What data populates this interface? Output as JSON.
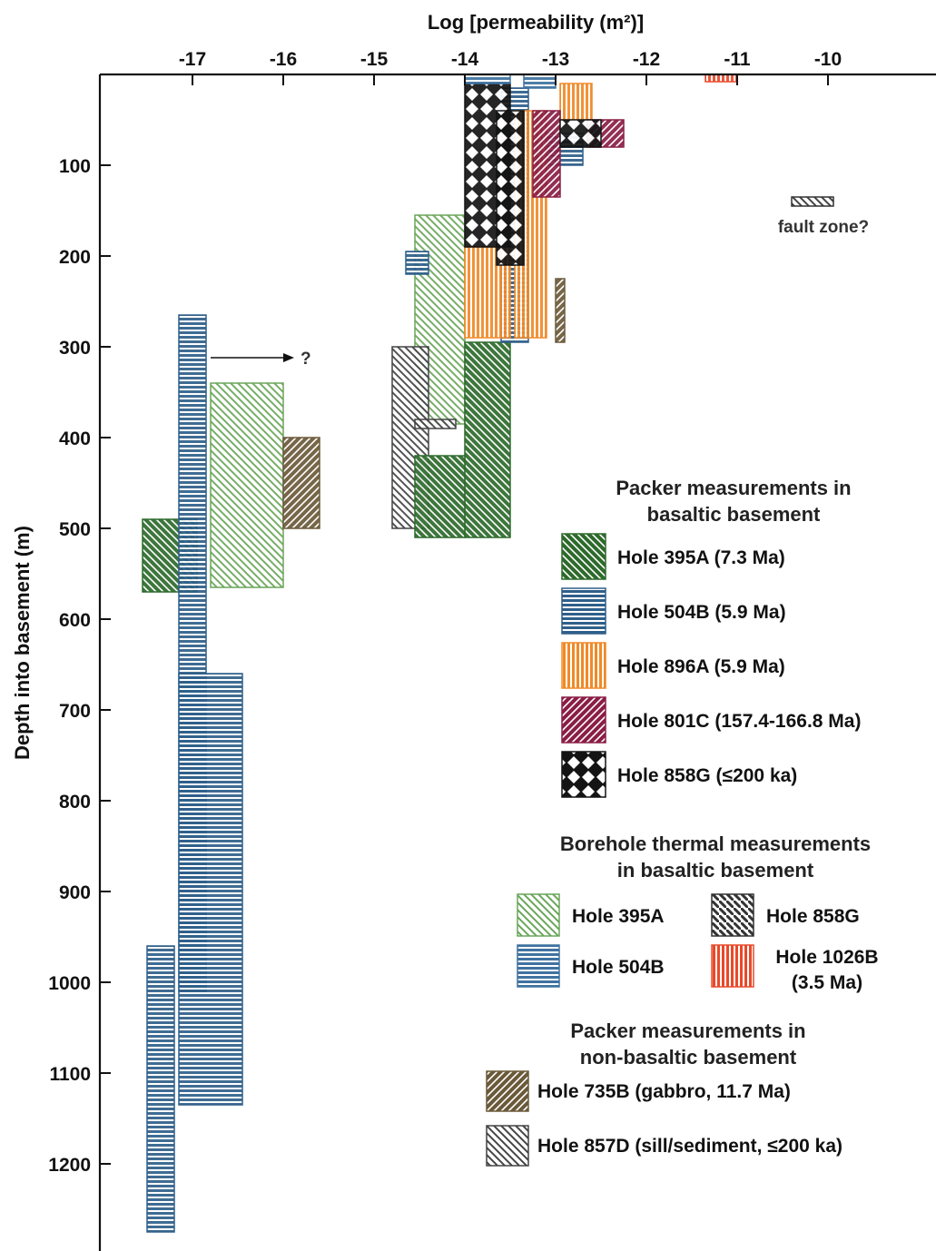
{
  "chart_data": {
    "type": "range-bar",
    "xlabel": "Log [permeability (m²)]",
    "ylabel": "Depth into basement (m)",
    "xlim": [
      -18,
      -9
    ],
    "ylim": [
      0,
      1280
    ],
    "y_inverted": true,
    "x_ticks": [
      "-17",
      "-16",
      "-15",
      "-14",
      "-13",
      "-12",
      "-11",
      "-10"
    ],
    "y_ticks": [
      "100",
      "200",
      "300",
      "400",
      "500",
      "600",
      "700",
      "800",
      "900",
      "1000",
      "1100",
      "1200"
    ],
    "legend_groups": [
      {
        "title_lines": [
          "Packer measurements in",
          "basaltic basement"
        ],
        "items": [
          {
            "key": "p395A",
            "label": "Hole 395A (7.3 Ma)"
          },
          {
            "key": "p504B",
            "label": "Hole 504B (5.9 Ma)"
          },
          {
            "key": "p896A",
            "label": "Hole 896A (5.9 Ma)"
          },
          {
            "key": "p801C",
            "label": "Hole 801C (157.4-166.8 Ma)"
          },
          {
            "key": "p858G",
            "label": "Hole 858G (≤200 ka)"
          }
        ]
      },
      {
        "title_lines": [
          "Borehole thermal measurements",
          "in basaltic basement"
        ],
        "items": [
          {
            "key": "t395A",
            "label": "Hole 395A"
          },
          {
            "key": "t858G",
            "label": "Hole 858G"
          },
          {
            "key": "t504B",
            "label": "Hole 504B"
          },
          {
            "key": "t1026B",
            "label": "Hole 1026B",
            "label2": "(3.5 Ma)"
          }
        ]
      },
      {
        "title_lines": [
          "Packer measurements in",
          "non-basaltic basement"
        ],
        "items": [
          {
            "key": "n735B",
            "label": "Hole 735B (gabbro, 11.7 Ma)"
          },
          {
            "key": "n857D",
            "label": "Hole 857D (sill/sediment, ≤200 ka)"
          }
        ]
      }
    ],
    "series": [
      {
        "key": "t395A",
        "ranges": [
          {
            "x": [
              -16.8,
              -16.0
            ],
            "y": [
              340,
              565
            ]
          },
          {
            "x": [
              -14.55,
              -14.0
            ],
            "y": [
              155,
              385
            ]
          }
        ]
      },
      {
        "key": "n735B",
        "ranges": [
          {
            "x": [
              -16.0,
              -15.6
            ],
            "y": [
              400,
              500
            ]
          },
          {
            "x": [
              -13.0,
              -12.9
            ],
            "y": [
              225,
              295
            ]
          }
        ]
      },
      {
        "key": "n857D",
        "ranges": [
          {
            "x": [
              -14.8,
              -14.4
            ],
            "y": [
              300,
              500
            ]
          },
          {
            "x": [
              -14.55,
              -14.1
            ],
            "y": [
              380,
              390
            ]
          }
        ]
      },
      {
        "key": "p395A",
        "ranges": [
          {
            "x": [
              -17.55,
              -16.95
            ],
            "y": [
              490,
              570
            ]
          },
          {
            "x": [
              -14.0,
              -13.5
            ],
            "y": [
              295,
              510
            ]
          },
          {
            "x": [
              -14.55,
              -14.0
            ],
            "y": [
              420,
              510
            ]
          }
        ]
      },
      {
        "key": "p504B",
        "ranges": [
          {
            "x": [
              -17.15,
              -16.85
            ],
            "y": [
              265,
              1010
            ]
          },
          {
            "x": [
              -17.15,
              -16.45
            ],
            "y": [
              660,
              1135
            ]
          },
          {
            "x": [
              -17.5,
              -17.2
            ],
            "y": [
              960,
              1275
            ]
          },
          {
            "x": [
              -14.65,
              -14.4
            ],
            "y": [
              195,
              220
            ]
          },
          {
            "x": [
              -13.6,
              -13.3
            ],
            "y": [
              15,
              295
            ]
          },
          {
            "x": [
              -13.1,
              -12.7
            ],
            "y": [
              65,
              100
            ]
          }
        ]
      },
      {
        "key": "p896A",
        "ranges": [
          {
            "x": [
              -14.0,
              -13.5
            ],
            "y": [
              190,
              290
            ]
          },
          {
            "x": [
              -13.45,
              -13.1
            ],
            "y": [
              40,
              290
            ]
          },
          {
            "x": [
              -12.95,
              -12.6
            ],
            "y": [
              10,
              50
            ]
          }
        ]
      },
      {
        "key": "p801C",
        "ranges": [
          {
            "x": [
              -13.25,
              -12.95
            ],
            "y": [
              40,
              135
            ]
          },
          {
            "x": [
              -12.65,
              -12.25
            ],
            "y": [
              50,
              80
            ]
          }
        ]
      },
      {
        "key": "p858G",
        "ranges": [
          {
            "x": [
              -14.0,
              -13.5
            ],
            "y": [
              10,
              190
            ]
          },
          {
            "x": [
              -13.65,
              -13.35
            ],
            "y": [
              40,
              210
            ]
          },
          {
            "x": [
              -12.95,
              -12.5
            ],
            "y": [
              50,
              80
            ]
          }
        ]
      },
      {
        "key": "t504B",
        "ranges": [
          {
            "x": [
              -14.0,
              -13.5
            ],
            "y": [
              0,
              10
            ]
          },
          {
            "x": [
              -13.35,
              -13.0
            ],
            "y": [
              0,
              15
            ]
          }
        ]
      },
      {
        "key": "t1026B",
        "ranges": [
          {
            "x": [
              -11.35,
              -11.0
            ],
            "y": [
              0,
              8
            ]
          }
        ]
      }
    ],
    "annotations": {
      "arrow_label": "?",
      "fault_zone_label": "fault zone?"
    }
  },
  "colors": {
    "p395A": "#2e6a2c",
    "p504B": "#2f5f8a",
    "p896A": "#f08a28",
    "p801C": "#8a1e45",
    "p858G": "#141414",
    "t395A": "#6aa65a",
    "t504B": "#3f72a0",
    "t858G": "#333333",
    "t1026B": "#e84a2a",
    "n735B": "#6b5a3a",
    "n857D": "#444444"
  }
}
